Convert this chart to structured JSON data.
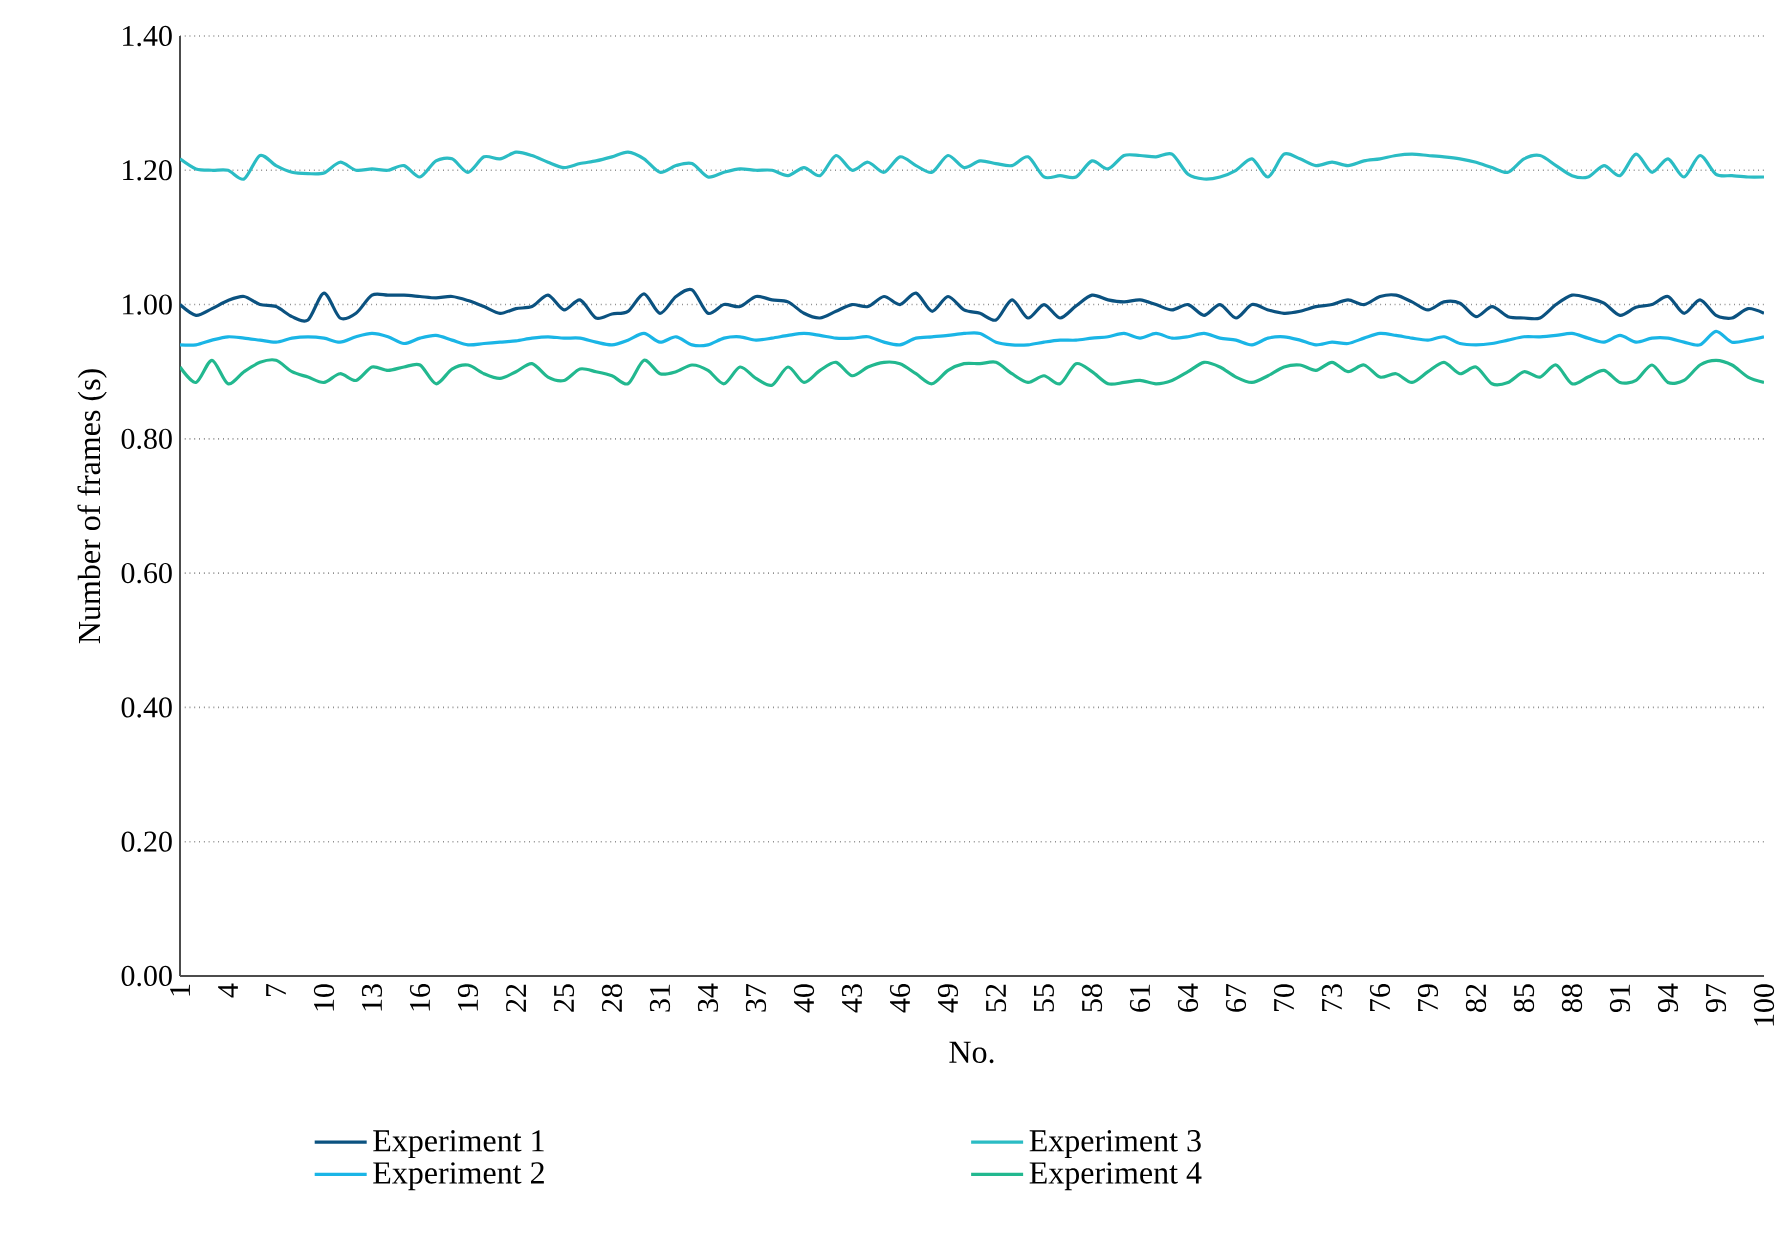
{
  "chart_data": {
    "type": "line",
    "xlabel": "No.",
    "ylabel": "Number of frames (s)",
    "categories": [
      "1",
      null,
      null,
      "4",
      null,
      null,
      "7",
      null,
      null,
      "10",
      null,
      null,
      "13",
      null,
      null,
      "16",
      null,
      null,
      "19",
      null,
      null,
      "22",
      null,
      null,
      "25",
      null,
      null,
      "28",
      null,
      null,
      "31",
      null,
      null,
      "34",
      null,
      null,
      "37",
      null,
      null,
      "40",
      null,
      null,
      "43",
      null,
      null,
      "46",
      null,
      null,
      "49",
      null,
      null,
      "52",
      null,
      null,
      "55",
      null,
      null,
      "58",
      null,
      null,
      "61",
      null,
      null,
      "64",
      null,
      null,
      "67",
      null,
      null,
      "70",
      null,
      null,
      "73",
      null,
      null,
      "76",
      null,
      null,
      "79",
      null,
      null,
      "82",
      null,
      null,
      "85",
      null,
      null,
      "88",
      null,
      null,
      "91",
      null,
      null,
      "94",
      null,
      null,
      "97",
      null,
      null,
      "100"
    ],
    "ylim": [
      0,
      1.4
    ],
    "yticks": [
      {
        "value": 0,
        "label": "0.00"
      },
      {
        "value": 0.2,
        "label": "0.20"
      },
      {
        "value": 0.4,
        "label": "0.40"
      },
      {
        "value": 0.6,
        "label": "0.60"
      },
      {
        "value": 0.8,
        "label": "0.80"
      },
      {
        "value": 1.0,
        "label": "1.00"
      },
      {
        "value": 1.2,
        "label": "1.20"
      },
      {
        "value": 1.4,
        "label": "1.40"
      }
    ],
    "grid": "y",
    "legend": "bottom",
    "series": [
      {
        "name": "Experiment 1",
        "color": "#0b5280",
        "values": [
          1.0,
          0.984,
          0.994,
          1.006,
          1.012,
          1.0,
          0.997,
          0.982,
          0.977,
          1.017,
          0.98,
          0.987,
          1.014,
          1.014,
          1.014,
          1.012,
          1.01,
          1.012,
          1.006,
          0.997,
          0.987,
          0.994,
          0.997,
          1.014,
          0.992,
          1.007,
          0.98,
          0.986,
          0.99,
          1.016,
          0.987,
          1.012,
          1.022,
          0.987,
          1.0,
          0.997,
          1.012,
          1.007,
          1.004,
          0.987,
          0.98,
          0.99,
          1.0,
          0.997,
          1.012,
          1.0,
          1.017,
          0.99,
          1.012,
          0.992,
          0.987,
          0.977,
          1.007,
          0.98,
          1.0,
          0.98,
          0.998,
          1.014,
          1.007,
          1.004,
          1.007,
          1.0,
          0.992,
          1.0,
          0.984,
          1.0,
          0.98,
          1.0,
          0.992,
          0.987,
          0.99,
          0.997,
          1.0,
          1.007,
          1.0,
          1.012,
          1.014,
          1.004,
          0.992,
          1.004,
          1.002,
          0.982,
          0.997,
          0.982,
          0.98,
          0.98,
          1.0,
          1.014,
          1.01,
          1.002,
          0.984,
          0.996,
          1.0,
          1.012,
          0.987,
          1.007,
          0.984,
          0.98,
          0.994,
          0.987
        ]
      },
      {
        "name": "Experiment 2",
        "color": "#1ab5e6",
        "values": [
          0.94,
          0.94,
          0.947,
          0.952,
          0.95,
          0.947,
          0.944,
          0.95,
          0.952,
          0.95,
          0.944,
          0.952,
          0.957,
          0.952,
          0.942,
          0.95,
          0.954,
          0.947,
          0.94,
          0.942,
          0.944,
          0.946,
          0.95,
          0.952,
          0.95,
          0.95,
          0.944,
          0.94,
          0.947,
          0.957,
          0.944,
          0.952,
          0.94,
          0.94,
          0.95,
          0.952,
          0.947,
          0.95,
          0.954,
          0.957,
          0.954,
          0.95,
          0.95,
          0.952,
          0.944,
          0.94,
          0.95,
          0.952,
          0.954,
          0.957,
          0.957,
          0.944,
          0.94,
          0.94,
          0.944,
          0.947,
          0.947,
          0.95,
          0.952,
          0.957,
          0.95,
          0.957,
          0.95,
          0.952,
          0.957,
          0.95,
          0.947,
          0.94,
          0.95,
          0.952,
          0.947,
          0.94,
          0.944,
          0.942,
          0.95,
          0.957,
          0.954,
          0.95,
          0.947,
          0.952,
          0.942,
          0.94,
          0.942,
          0.947,
          0.952,
          0.952,
          0.954,
          0.957,
          0.95,
          0.944,
          0.954,
          0.944,
          0.95,
          0.95,
          0.944,
          0.94,
          0.96,
          0.944,
          0.947,
          0.952
        ]
      },
      {
        "name": "Experiment 3",
        "color": "#2bbcc4",
        "values": [
          1.217,
          1.202,
          1.2,
          1.2,
          1.187,
          1.222,
          1.207,
          1.197,
          1.195,
          1.196,
          1.212,
          1.2,
          1.202,
          1.2,
          1.207,
          1.19,
          1.214,
          1.217,
          1.197,
          1.22,
          1.217,
          1.227,
          1.222,
          1.212,
          1.204,
          1.21,
          1.214,
          1.22,
          1.227,
          1.217,
          1.197,
          1.207,
          1.21,
          1.19,
          1.197,
          1.202,
          1.2,
          1.2,
          1.192,
          1.204,
          1.192,
          1.222,
          1.2,
          1.212,
          1.197,
          1.22,
          1.207,
          1.197,
          1.222,
          1.204,
          1.214,
          1.21,
          1.207,
          1.22,
          1.19,
          1.192,
          1.19,
          1.214,
          1.202,
          1.222,
          1.222,
          1.22,
          1.224,
          1.194,
          1.187,
          1.19,
          1.2,
          1.217,
          1.19,
          1.224,
          1.217,
          1.207,
          1.212,
          1.207,
          1.214,
          1.217,
          1.222,
          1.224,
          1.222,
          1.22,
          1.217,
          1.212,
          1.204,
          1.197,
          1.217,
          1.222,
          1.207,
          1.192,
          1.19,
          1.207,
          1.192,
          1.224,
          1.197,
          1.217,
          1.19,
          1.222,
          1.194,
          1.192,
          1.19,
          1.19
        ]
      },
      {
        "name": "Experiment 4",
        "color": "#22b88f",
        "values": [
          0.907,
          0.884,
          0.917,
          0.882,
          0.9,
          0.914,
          0.917,
          0.9,
          0.892,
          0.884,
          0.897,
          0.887,
          0.907,
          0.902,
          0.907,
          0.91,
          0.882,
          0.904,
          0.91,
          0.897,
          0.89,
          0.9,
          0.912,
          0.892,
          0.887,
          0.904,
          0.9,
          0.894,
          0.882,
          0.917,
          0.897,
          0.9,
          0.91,
          0.902,
          0.882,
          0.907,
          0.89,
          0.88,
          0.907,
          0.884,
          0.902,
          0.914,
          0.894,
          0.907,
          0.914,
          0.912,
          0.897,
          0.882,
          0.902,
          0.912,
          0.912,
          0.914,
          0.897,
          0.884,
          0.894,
          0.882,
          0.912,
          0.9,
          0.882,
          0.884,
          0.887,
          0.882,
          0.887,
          0.9,
          0.914,
          0.907,
          0.892,
          0.884,
          0.894,
          0.907,
          0.91,
          0.902,
          0.914,
          0.9,
          0.91,
          0.892,
          0.897,
          0.884,
          0.9,
          0.914,
          0.897,
          0.907,
          0.882,
          0.884,
          0.9,
          0.892,
          0.91,
          0.882,
          0.892,
          0.902,
          0.884,
          0.887,
          0.91,
          0.884,
          0.887,
          0.91,
          0.917,
          0.91,
          0.892,
          0.884
        ]
      }
    ]
  }
}
